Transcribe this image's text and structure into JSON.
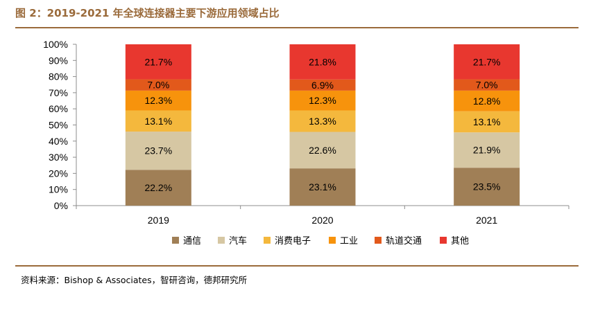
{
  "header": {
    "title": "图 2：2019-2021 年全球连接器主要下游应用领域占比"
  },
  "footer": {
    "source": "资料来源：Bishop & Associates，智研咨询，德邦研究所"
  },
  "chart_data": {
    "type": "bar",
    "stacked": true,
    "categories": [
      "2019",
      "2020",
      "2021"
    ],
    "y_ticks": [
      "0%",
      "10%",
      "20%",
      "30%",
      "40%",
      "50%",
      "60%",
      "70%",
      "80%",
      "90%",
      "100%"
    ],
    "ylim": [
      0,
      100
    ],
    "legend_position": "bottom",
    "series": [
      {
        "name": "通信",
        "color": "#a07f56",
        "values": [
          22.2,
          23.1,
          23.5
        ],
        "labels": [
          "22.2%",
          "23.1%",
          "23.5%"
        ]
      },
      {
        "name": "汽车",
        "color": "#d6c7a3",
        "values": [
          23.7,
          22.6,
          21.9
        ],
        "labels": [
          "23.7%",
          "22.6%",
          "21.9%"
        ]
      },
      {
        "name": "消费电子",
        "color": "#f4b83d",
        "values": [
          13.1,
          13.3,
          13.1
        ],
        "labels": [
          "13.1%",
          "13.3%",
          "13.1%"
        ]
      },
      {
        "name": "工业",
        "color": "#f7930c",
        "values": [
          12.3,
          12.3,
          12.8
        ],
        "labels": [
          "12.3%",
          "12.3%",
          "12.8%"
        ]
      },
      {
        "name": "轨道交通",
        "color": "#e2591b",
        "values": [
          7.0,
          6.9,
          7.0
        ],
        "labels": [
          "7.0%",
          "6.9%",
          "7.0%"
        ]
      },
      {
        "name": "其他",
        "color": "#e8372f",
        "values": [
          21.7,
          21.8,
          21.7
        ],
        "labels": [
          "21.7%",
          "21.8%",
          "21.7%"
        ]
      }
    ]
  }
}
